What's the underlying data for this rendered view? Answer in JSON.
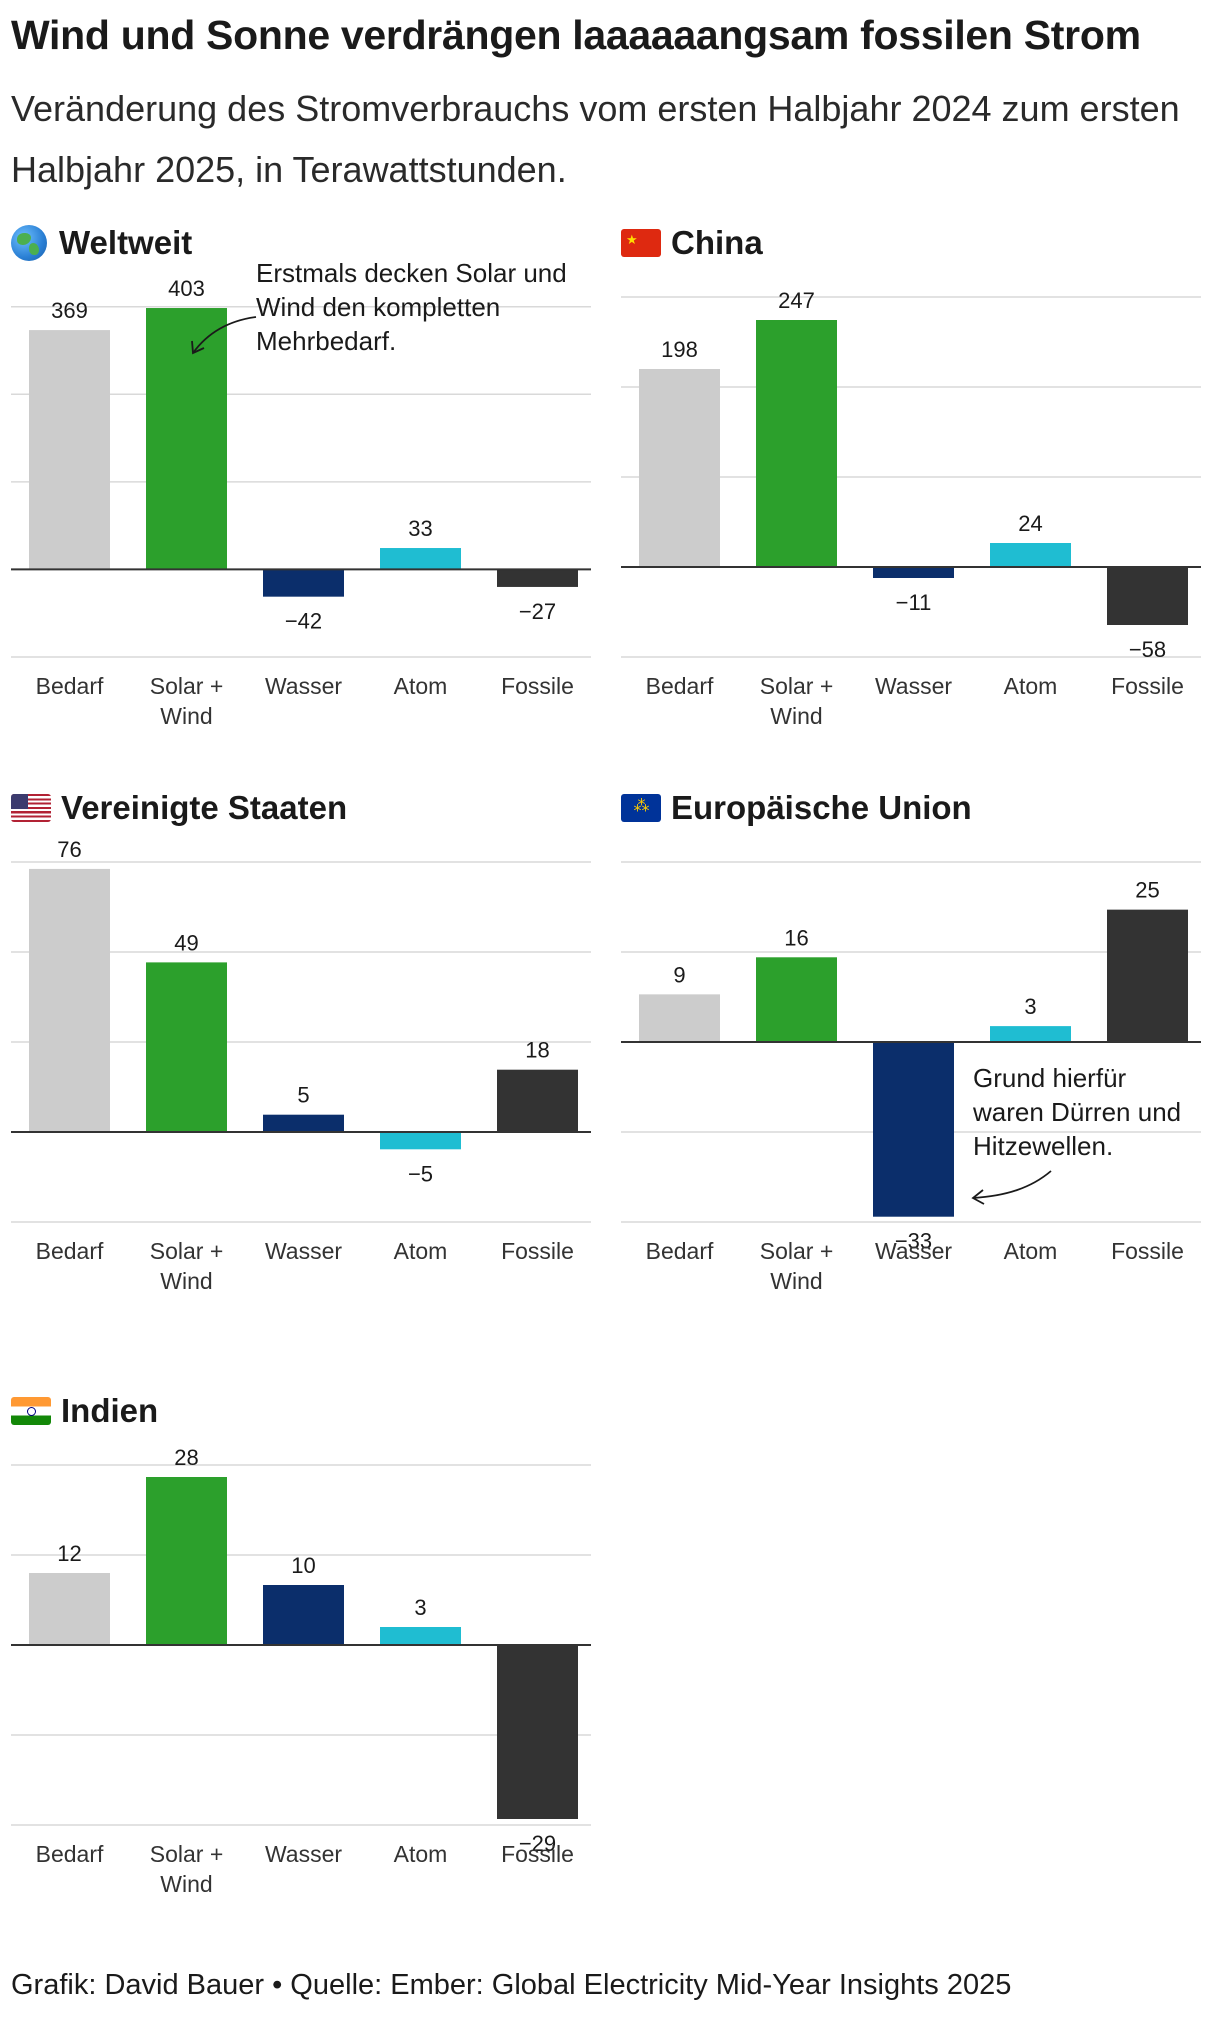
{
  "title": "Wind und Sonne verdrängen laaaaaangsam fossilen Strom",
  "subtitle": "Veränderung des Stromverbrauchs vom ersten Halbjahr 2024 zum ersten Halbjahr 2025, in Terawattstunden.",
  "footer": "Grafik: David Bauer • Quelle: Ember: Global Electricity Mid-Year Insights 2025",
  "colors": {
    "Bedarf": "#cccccc",
    "Solar + Wind": "#2ca02c",
    "Wasser": "#0b2e6b",
    "Atom": "#1fbdd2",
    "Fossile": "#333333",
    "grid": "#d9d9d9",
    "zero": "#333333"
  },
  "panels": [
    {
      "region": "Weltweit",
      "icon": "globe-icon"
    },
    {
      "region": "China",
      "icon": "china-flag-icon"
    },
    {
      "region": "Vereinigte Staaten",
      "icon": "usa-flag-icon"
    },
    {
      "region": "Europäische Union",
      "icon": "eu-flag-icon"
    },
    {
      "region": "Indien",
      "icon": "india-flag-icon"
    }
  ],
  "annotations": {
    "world": "Erstmals decken Solar und Wind den kompletten Mehrbedarf.",
    "eu": "Grund hierfür waren Dürren und Hitzewellen."
  },
  "chart_data": [
    {
      "type": "bar",
      "title": "Weltweit",
      "categories": [
        "Bedarf",
        "Solar + Wind",
        "Wasser",
        "Atom",
        "Fossile"
      ],
      "values": [
        369,
        403,
        -42,
        33,
        -27
      ],
      "value_labels": [
        "369",
        "403",
        "−42",
        "33",
        "−27"
      ],
      "ylim": [
        -135,
        420
      ],
      "gridlines": [
        -135,
        0,
        135,
        270,
        405
      ],
      "ylabel": "Terawattstunden"
    },
    {
      "type": "bar",
      "title": "China",
      "categories": [
        "Bedarf",
        "Solar + Wind",
        "Wasser",
        "Atom",
        "Fossile"
      ],
      "values": [
        198,
        247,
        -11,
        24,
        -58
      ],
      "value_labels": [
        "198",
        "247",
        "−11",
        "24",
        "−58"
      ],
      "ylim": [
        -90,
        270
      ],
      "gridlines": [
        -90,
        0,
        90,
        180,
        270
      ],
      "ylabel": "Terawattstunden"
    },
    {
      "type": "bar",
      "title": "Vereinigte Staaten",
      "categories": [
        "Bedarf",
        "Solar + Wind",
        "Wasser",
        "Atom",
        "Fossile"
      ],
      "values": [
        76,
        49,
        5,
        -5,
        18
      ],
      "value_labels": [
        "76",
        "49",
        "5",
        "−5",
        "18"
      ],
      "ylim": [
        -26,
        78
      ],
      "gridlines": [
        -26,
        0,
        26,
        52,
        78
      ],
      "ylabel": "Terawattstunden"
    },
    {
      "type": "bar",
      "title": "Europäische Union",
      "categories": [
        "Bedarf",
        "Solar + Wind",
        "Wasser",
        "Atom",
        "Fossile"
      ],
      "values": [
        9,
        16,
        -33,
        3,
        25
      ],
      "value_labels": [
        "9",
        "16",
        "−33",
        "3",
        "25"
      ],
      "ylim": [
        -34,
        34
      ],
      "gridlines": [
        -34,
        -17,
        0,
        17,
        34
      ],
      "ylabel": "Terawattstunden"
    },
    {
      "type": "bar",
      "title": "Indien",
      "categories": [
        "Bedarf",
        "Solar + Wind",
        "Wasser",
        "Atom",
        "Fossile"
      ],
      "values": [
        12,
        28,
        10,
        3,
        -29
      ],
      "value_labels": [
        "12",
        "28",
        "10",
        "3",
        "−29"
      ],
      "ylim": [
        -30,
        30
      ],
      "gridlines": [
        -30,
        -15,
        0,
        15,
        30
      ],
      "ylabel": "Terawattstunden"
    }
  ]
}
